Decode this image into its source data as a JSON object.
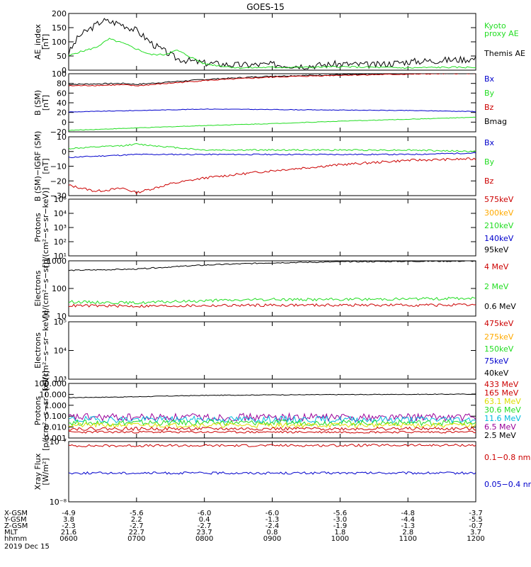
{
  "title": "GOES-15",
  "x_ticks": [
    "0600",
    "0700",
    "0800",
    "0900",
    "1000",
    "1100",
    "1200"
  ],
  "ephemeris": {
    "rows": [
      {
        "label": "X-GSM",
        "values": [
          "-4.9",
          "-5.6",
          "-6.0",
          "-6.0",
          "-5.6",
          "-4.8",
          "-3.7"
        ]
      },
      {
        "label": "Y-GSM",
        "values": [
          "3.8",
          "2.2",
          "0.4",
          "-1.3",
          "-3.0",
          "-4.4",
          "-5.5"
        ]
      },
      {
        "label": "Z-GSM",
        "values": [
          "-2.3",
          "-2.7",
          "-2.7",
          "-2.4",
          "-1.9",
          "-1.3",
          "-0.7"
        ]
      },
      {
        "label": "MLT",
        "values": [
          "21.6",
          "22.7",
          "23.7",
          "0.8",
          "1.8",
          "2.8",
          "3.7"
        ]
      },
      {
        "label": "hhmm",
        "values": [
          "0600",
          "0700",
          "0800",
          "0900",
          "1000",
          "1100",
          "1200"
        ]
      }
    ],
    "date": "2019 Dec 15"
  },
  "colors": {
    "black": "#000000",
    "red": "#cc0000",
    "green": "#22dd22",
    "blue": "#0000cc",
    "orange": "#ffaa00",
    "yellow": "#dddd00",
    "cyan": "#00bbdd",
    "purple": "#990099"
  },
  "chart_data": [
    {
      "type": "line",
      "ylabel": "AE_index\n[nT]",
      "yscale": "linear",
      "ylim": [
        0,
        200
      ],
      "yticks": [
        "0",
        "50",
        "100",
        "150",
        "200"
      ],
      "legend": [
        {
          "text": "Kyoto\nproxy AE",
          "color": "green"
        },
        {
          "text": "Themis AE",
          "color": "black"
        }
      ],
      "series": [
        {
          "name": "Themis AE",
          "color": "black",
          "x": [
            0,
            0.15,
            0.5,
            0.75,
            1.0,
            1.25,
            1.6,
            2.0,
            2.5,
            3.0,
            3.5,
            4.0,
            4.5,
            5.0,
            5.5,
            6.0
          ],
          "y": [
            60,
            120,
            175,
            165,
            140,
            90,
            40,
            25,
            18,
            20,
            15,
            22,
            18,
            30,
            35,
            40
          ],
          "noise": 12,
          "seed": 3
        },
        {
          "name": "Kyoto proxy AE",
          "color": "green",
          "x": [
            0,
            0.1,
            0.4,
            0.6,
            0.8,
            1.0,
            1.2,
            1.4,
            1.6,
            2.0,
            2.5,
            3.0,
            3.5,
            4.0,
            4.5,
            5.0,
            5.5,
            6.0
          ],
          "y": [
            50,
            60,
            80,
            110,
            95,
            75,
            55,
            55,
            70,
            22,
            8,
            10,
            10,
            12,
            10,
            8,
            10,
            10
          ],
          "noise": 3,
          "seed": 5
        }
      ]
    },
    {
      "type": "line",
      "ylabel": "B (SM)\n[nT]",
      "yscale": "linear",
      "ylim": [
        -20,
        100
      ],
      "yticks": [
        "−20",
        "0",
        "20",
        "40",
        "60",
        "80",
        "100"
      ],
      "legend": [
        {
          "text": "Bx",
          "color": "blue"
        },
        {
          "text": "By",
          "color": "green"
        },
        {
          "text": "Bz",
          "color": "red"
        },
        {
          "text": "Bmag",
          "color": "black"
        }
      ],
      "series": [
        {
          "name": "Bmag",
          "color": "black",
          "x": [
            0,
            0.8,
            1.0,
            2.0,
            3.0,
            4.0,
            5.0,
            6.0
          ],
          "y": [
            78,
            80,
            78,
            88,
            95,
            98,
            100,
            102
          ],
          "noise": 1.2,
          "seed": 7
        },
        {
          "name": "Bz",
          "color": "red",
          "x": [
            0,
            0.8,
            1.0,
            2.0,
            3.0,
            4.0,
            5.0,
            6.0
          ],
          "y": [
            75,
            77,
            75,
            86,
            93,
            97,
            99,
            101
          ],
          "noise": 1.2,
          "seed": 8
        },
        {
          "name": "Bx",
          "color": "blue",
          "x": [
            0,
            1.0,
            2.0,
            3.0,
            4.0,
            5.0,
            6.0
          ],
          "y": [
            21,
            24,
            27,
            26,
            25,
            24,
            22
          ],
          "noise": 0.6,
          "seed": 9
        },
        {
          "name": "By",
          "color": "green",
          "x": [
            0,
            1.0,
            2.0,
            3.0,
            4.0,
            5.0,
            6.0
          ],
          "y": [
            -17,
            -12,
            -7,
            -3,
            2,
            6,
            10
          ],
          "noise": 0.6,
          "seed": 10
        }
      ]
    },
    {
      "type": "line",
      "ylabel": "B (SM)−IGRF (SM)\n[nT]",
      "yscale": "linear",
      "ylim": [
        -30,
        10
      ],
      "yticks": [
        "−30",
        "−20",
        "−10",
        "0",
        "10"
      ],
      "legend": [
        {
          "text": "Bx",
          "color": "blue"
        },
        {
          "text": "By",
          "color": "green"
        },
        {
          "text": "Bz",
          "color": "red"
        }
      ],
      "series": [
        {
          "name": "Bx",
          "color": "blue",
          "x": [
            0,
            1.0,
            2.0,
            3.0,
            4.0,
            5.0,
            6.0
          ],
          "y": [
            -4,
            -2,
            -2,
            -2,
            -2,
            -2,
            -1
          ],
          "noise": 0.4,
          "seed": 11
        },
        {
          "name": "By",
          "color": "green",
          "x": [
            0,
            0.8,
            1.0,
            2.0,
            3.0,
            4.0,
            5.0,
            6.0
          ],
          "y": [
            2,
            4,
            5,
            1,
            1,
            1,
            1,
            0
          ],
          "noise": 0.5,
          "seed": 12
        },
        {
          "name": "Bz",
          "color": "red",
          "x": [
            0,
            0.4,
            0.8,
            1.0,
            1.5,
            2.0,
            3.0,
            4.0,
            5.0,
            6.0
          ],
          "y": [
            -23,
            -27,
            -25,
            -28,
            -22,
            -18,
            -13,
            -9,
            -6,
            -5
          ],
          "noise": 0.8,
          "seed": 13
        }
      ]
    },
    {
      "type": "line",
      "ylabel": "Protons\n[p/(cm²−s−sr−keV)]",
      "yscale": "log",
      "ylim": [
        10,
        100000
      ],
      "yticks": [
        "10¹",
        "10²",
        "10³",
        "10⁴",
        "10⁵"
      ],
      "legend": [
        {
          "text": "575keV",
          "color": "red"
        },
        {
          "text": "300keV",
          "color": "orange"
        },
        {
          "text": "210keV",
          "color": "green"
        },
        {
          "text": "140keV",
          "color": "blue"
        },
        {
          "text": "95keV",
          "color": "black"
        }
      ],
      "series": []
    },
    {
      "type": "line",
      "ylabel": "Electrons\n[e/(cm²−s−sr)]",
      "yscale": "log",
      "ylim": [
        10,
        1000
      ],
      "yticks": [
        "10",
        "100",
        "1000"
      ],
      "legend": [
        {
          "text": "4 MeV",
          "color": "red"
        },
        {
          "text": "2 MeV",
          "color": "green"
        },
        {
          "text": "0.6 MeV",
          "color": "black"
        }
      ],
      "series": [
        {
          "name": "0.6 MeV",
          "color": "black",
          "x": [
            0,
            1.0,
            2.0,
            3.0,
            4.0,
            5.0,
            6.0
          ],
          "y": [
            450,
            500,
            700,
            850,
            920,
            960,
            980
          ],
          "noise": 0.02,
          "seed": 14
        },
        {
          "name": "2 MeV",
          "color": "green",
          "x": [
            0,
            1.0,
            2.0,
            3.0,
            4.0,
            5.0,
            6.0
          ],
          "y": [
            33,
            30,
            36,
            40,
            40,
            42,
            44
          ],
          "noise": 0.05,
          "seed": 15
        },
        {
          "name": "4 MeV",
          "color": "red",
          "x": [
            0,
            1.0,
            2.0,
            3.0,
            4.0,
            5.0,
            6.0
          ],
          "y": [
            24,
            23,
            24,
            25,
            25,
            25,
            25
          ],
          "noise": 0.05,
          "seed": 16
        }
      ]
    },
    {
      "type": "line",
      "ylabel": "Electrons\n[e/(cm²−s−sr−keV)]",
      "yscale": "log",
      "ylim": [
        1000,
        100000
      ],
      "yticks": [
        "10³",
        "10⁴",
        "10⁵"
      ],
      "legend": [
        {
          "text": "475keV",
          "color": "red"
        },
        {
          "text": "275keV",
          "color": "orange"
        },
        {
          "text": "150keV",
          "color": "green"
        },
        {
          "text": "75keV",
          "color": "blue"
        },
        {
          "text": "40keV",
          "color": "black"
        }
      ],
      "series": []
    },
    {
      "type": "line",
      "ylabel": "Protons\n[p/(cm²−s−sr−keV)]",
      "yscale": "log",
      "ylim": [
        0.001,
        100
      ],
      "yticks": [
        "0.001",
        "0.010",
        "0.100",
        "1.000",
        "10.000",
        "100.000"
      ],
      "legend": [
        {
          "text": "433 MeV",
          "color": "red"
        },
        {
          "text": "165 MeV",
          "color": "red"
        },
        {
          "text": "63.1 MeV",
          "color": "yellow"
        },
        {
          "text": "30.6 MeV",
          "color": "green"
        },
        {
          "text": "11.6 MeV",
          "color": "cyan"
        },
        {
          "text": "6.5 MeV",
          "color": "purple"
        },
        {
          "text": "2.5 MeV",
          "color": "black"
        }
      ],
      "series": [
        {
          "name": "2.5 MeV",
          "color": "black",
          "x": [
            0,
            1.0,
            2.0,
            3.0,
            4.0,
            5.0,
            6.0
          ],
          "y": [
            5,
            6,
            8,
            9,
            9.5,
            10,
            10.5
          ],
          "noise": 0.03,
          "seed": 17
        },
        {
          "name": "6.5 MeV",
          "color": "purple",
          "x": [
            0,
            6.0
          ],
          "y": [
            0.08,
            0.08
          ],
          "noise": 0.35,
          "seed": 18
        },
        {
          "name": "11.6 MeV",
          "color": "cyan",
          "x": [
            0,
            6.0
          ],
          "y": [
            0.05,
            0.05
          ],
          "noise": 0.3,
          "seed": 19
        },
        {
          "name": "30.6 MeV",
          "color": "green",
          "x": [
            0,
            6.0
          ],
          "y": [
            0.025,
            0.025
          ],
          "noise": 0.25,
          "seed": 20
        },
        {
          "name": "63.1 MeV",
          "color": "yellow",
          "x": [
            0,
            6.0
          ],
          "y": [
            0.015,
            0.015
          ],
          "noise": 0.22,
          "seed": 21
        },
        {
          "name": "165 MeV",
          "color": "red",
          "x": [
            0,
            6.0
          ],
          "y": [
            0.007,
            0.007
          ],
          "noise": 0.15,
          "seed": 22
        },
        {
          "name": "433 MeV",
          "color": "red",
          "x": [
            0,
            6.0
          ],
          "y": [
            0.0035,
            0.0035
          ],
          "noise": 0.1,
          "seed": 23
        }
      ]
    },
    {
      "type": "line",
      "ylabel": "Xray Flux\n[W/m²]",
      "yscale": "log",
      "ylim": [
        1e-08,
        1e-07
      ],
      "yticks": [
        "10⁻⁸",
        "10⁻⁷"
      ],
      "legend": [
        {
          "text": "0.1−0.8 nm",
          "color": "red"
        },
        {
          "text": "0.05−0.4 nm",
          "color": "blue"
        }
      ],
      "series": [
        {
          "name": "0.1−0.8 nm",
          "color": "red",
          "x": [
            0,
            6.0
          ],
          "y": [
            8.5e-08,
            8.7e-08
          ],
          "noise": 0.02,
          "seed": 24
        },
        {
          "name": "0.05−0.4 nm",
          "color": "blue",
          "x": [
            0,
            6.0
          ],
          "y": [
            3e-08,
            3e-08
          ],
          "noise": 0.02,
          "seed": 25
        }
      ]
    }
  ]
}
